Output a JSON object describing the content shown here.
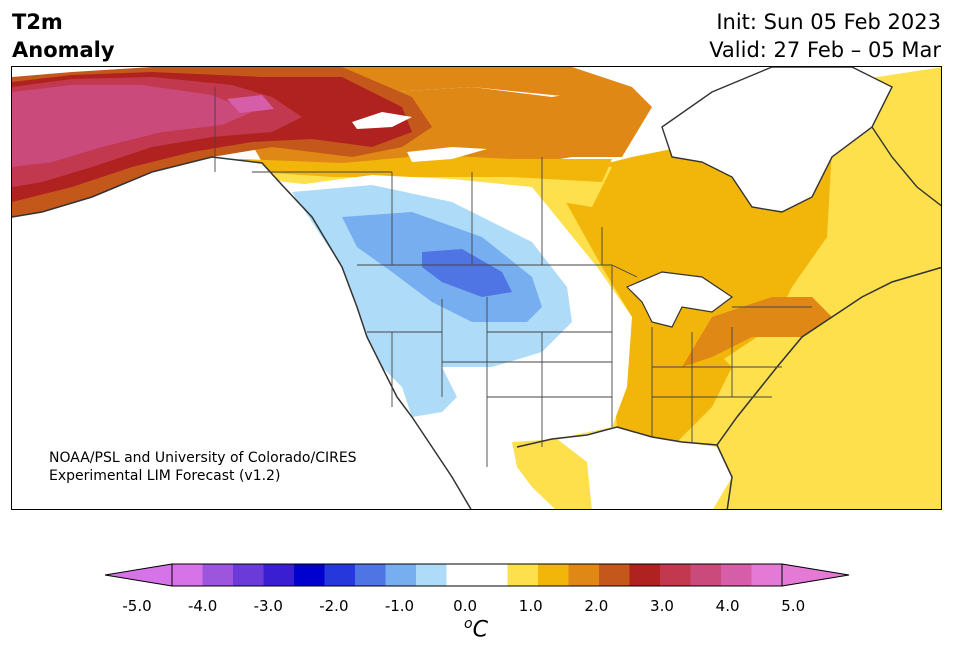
{
  "title": {
    "line1": "T2m",
    "line2": "Anomaly"
  },
  "header_right": {
    "init": "Init: Sun 05 Feb 2023",
    "valid": "Valid: 27 Feb – 05 Mar"
  },
  "credit": {
    "line1": "NOAA/PSL and University of Colorado/CIRES",
    "line2": "Experimental LIM Forecast (v1.2)"
  },
  "colorbar": {
    "unit_prefix": "o",
    "unit_main": "C",
    "ticks": [
      "-5.0",
      "-4.0",
      "-3.0",
      "-2.0",
      "-1.0",
      "0.0",
      "1.0",
      "2.0",
      "3.0",
      "4.0",
      "5.0"
    ],
    "colors": [
      "#d673e8",
      "#9c55dc",
      "#6a3bd8",
      "#3a1fd2",
      "#0000cf",
      "#2637dc",
      "#4f74e4",
      "#76aef0",
      "#aedcf8",
      "#ffffff",
      "#ffffff",
      "#fde04c",
      "#f2b50a",
      "#df8815",
      "#c4571a",
      "#b0221f",
      "#c2394f",
      "#cb4a7c",
      "#d65ea8",
      "#e47ad6"
    ],
    "under_color": "#d673e8",
    "over_color": "#e47ad6"
  },
  "legend_colors": {
    "light_blue": "#aedcf8",
    "mid_blue": "#76aef0",
    "blue": "#4f74e4",
    "yellow": "#fde04c",
    "gold": "#f2b50a",
    "orange": "#df8815",
    "dark_orange": "#c4571a",
    "red": "#b0221f",
    "crimson": "#c2394f",
    "pink": "#cb4a7c",
    "magenta": "#d65ea8",
    "land_outline": "#333333"
  }
}
